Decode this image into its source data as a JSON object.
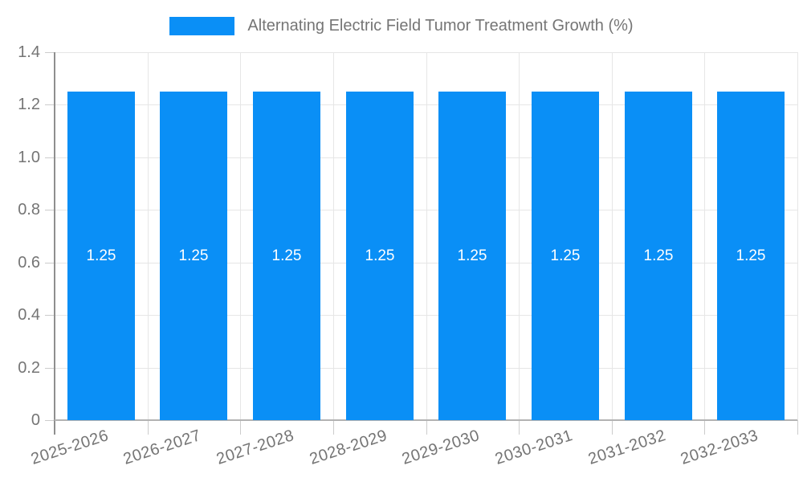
{
  "legend": {
    "label": "Alternating Electric Field Tumor Treatment Growth (%)"
  },
  "chart_data": {
    "type": "bar",
    "title": "Alternating Electric Field Tumor Treatment Growth (%)",
    "categories": [
      "2025-2026",
      "2026-2027",
      "2027-2028",
      "2028-2029",
      "2029-2030",
      "2030-2031",
      "2031-2032",
      "2032-2033"
    ],
    "series": [
      {
        "name": "Alternating Electric Field Tumor Treatment Growth (%)",
        "values": [
          1.25,
          1.25,
          1.25,
          1.25,
          1.25,
          1.25,
          1.25,
          1.25
        ],
        "value_labels": [
          "1.25",
          "1.25",
          "1.25",
          "1.25",
          "1.25",
          "1.25",
          "1.25",
          "1.25"
        ],
        "color": "#0A8FF6"
      }
    ],
    "xlabel": "",
    "ylabel": "",
    "ylim": [
      0,
      1.4
    ],
    "yticks": [
      0,
      0.2,
      0.4,
      0.6,
      0.8,
      1.0,
      1.2,
      1.4
    ],
    "ytick_labels": [
      "0",
      "0.2",
      "0.4",
      "0.6",
      "0.8",
      "1.0",
      "1.2",
      "1.4"
    ],
    "grid": true,
    "legend_position": "top",
    "colors": {
      "bar": "#0A8FF6",
      "bar_label": "#ffffff",
      "axis_text": "#757575",
      "grid_line": "#e6e6e6",
      "axis_line_y": "#8f8f8f",
      "axis_line_x": "#b3b3b3",
      "tick": "#cccccc",
      "background": "#ffffff"
    }
  }
}
